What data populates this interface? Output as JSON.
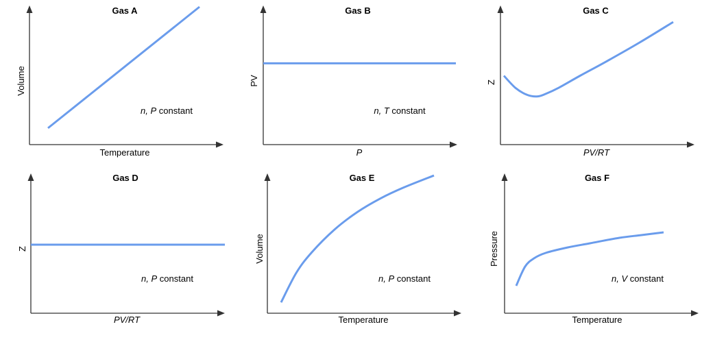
{
  "chart_data": [
    {
      "type": "line",
      "title": "Gas A",
      "xlabel": "Temperature",
      "xlabel_italic": false,
      "ylabel": "Volume",
      "ylabel_italic": false,
      "annotation": {
        "italic_part": "n, P",
        "text": " constant"
      },
      "shape": "linear increasing",
      "x": [
        0.0,
        1.0
      ],
      "y": [
        0.12,
        1.0
      ],
      "series_color": "#6a9cec"
    },
    {
      "type": "line",
      "title": "Gas B",
      "xlabel": "P",
      "xlabel_italic": true,
      "ylabel": "PV",
      "ylabel_italic": false,
      "annotation": {
        "italic_part": "n, T",
        "text": " constant"
      },
      "shape": "constant",
      "x": [
        0.0,
        1.0
      ],
      "y": [
        0.59,
        0.59
      ],
      "series_color": "#6a9cec"
    },
    {
      "type": "line",
      "title": "Gas C",
      "xlabel": "PV/RT",
      "xlabel_italic": true,
      "ylabel": "Z",
      "ylabel_italic": false,
      "annotation": null,
      "shape": "dips to a minimum then increases linearly",
      "x": [
        0.0,
        0.07,
        0.14,
        0.2,
        0.25,
        0.32,
        0.45,
        0.6,
        0.8,
        1.0
      ],
      "y": [
        0.5,
        0.41,
        0.36,
        0.35,
        0.37,
        0.41,
        0.5,
        0.6,
        0.74,
        0.89
      ],
      "series_color": "#6a9cec"
    },
    {
      "type": "line",
      "title": "Gas D",
      "xlabel": "PV/RT",
      "xlabel_italic": true,
      "ylabel": "Z",
      "ylabel_italic": false,
      "annotation": {
        "italic_part": "n, P",
        "text": " constant"
      },
      "shape": "constant",
      "x": [
        0.0,
        1.0
      ],
      "y": [
        0.5,
        0.5
      ],
      "series_color": "#6a9cec"
    },
    {
      "type": "line",
      "title": "Gas E",
      "xlabel": "Temperature",
      "xlabel_italic": false,
      "ylabel": "Volume",
      "ylabel_italic": false,
      "annotation": {
        "italic_part": "n, P",
        "text": " constant"
      },
      "shape": "concave increasing",
      "x": [
        0.0,
        0.1,
        0.2,
        0.35,
        0.5,
        0.65,
        0.8,
        1.0
      ],
      "y": [
        0.08,
        0.3,
        0.45,
        0.62,
        0.75,
        0.85,
        0.93,
        1.02
      ],
      "series_color": "#6a9cec"
    },
    {
      "type": "line",
      "title": "Gas F",
      "xlabel": "Temperature",
      "xlabel_italic": false,
      "ylabel": "Pressure",
      "ylabel_italic": false,
      "annotation": {
        "italic_part": "n, V",
        "text": " constant"
      },
      "shape": "rises steeply then levels off",
      "x": [
        0.0,
        0.06,
        0.12,
        0.2,
        0.35,
        0.5,
        0.7,
        0.85,
        1.0
      ],
      "y": [
        0.2,
        0.34,
        0.4,
        0.44,
        0.48,
        0.51,
        0.55,
        0.57,
        0.59
      ],
      "series_color": "#6a9cec"
    }
  ],
  "style": {
    "axis_color": "#333333",
    "text_color": "#000000",
    "line_color": "#6a9cec"
  }
}
